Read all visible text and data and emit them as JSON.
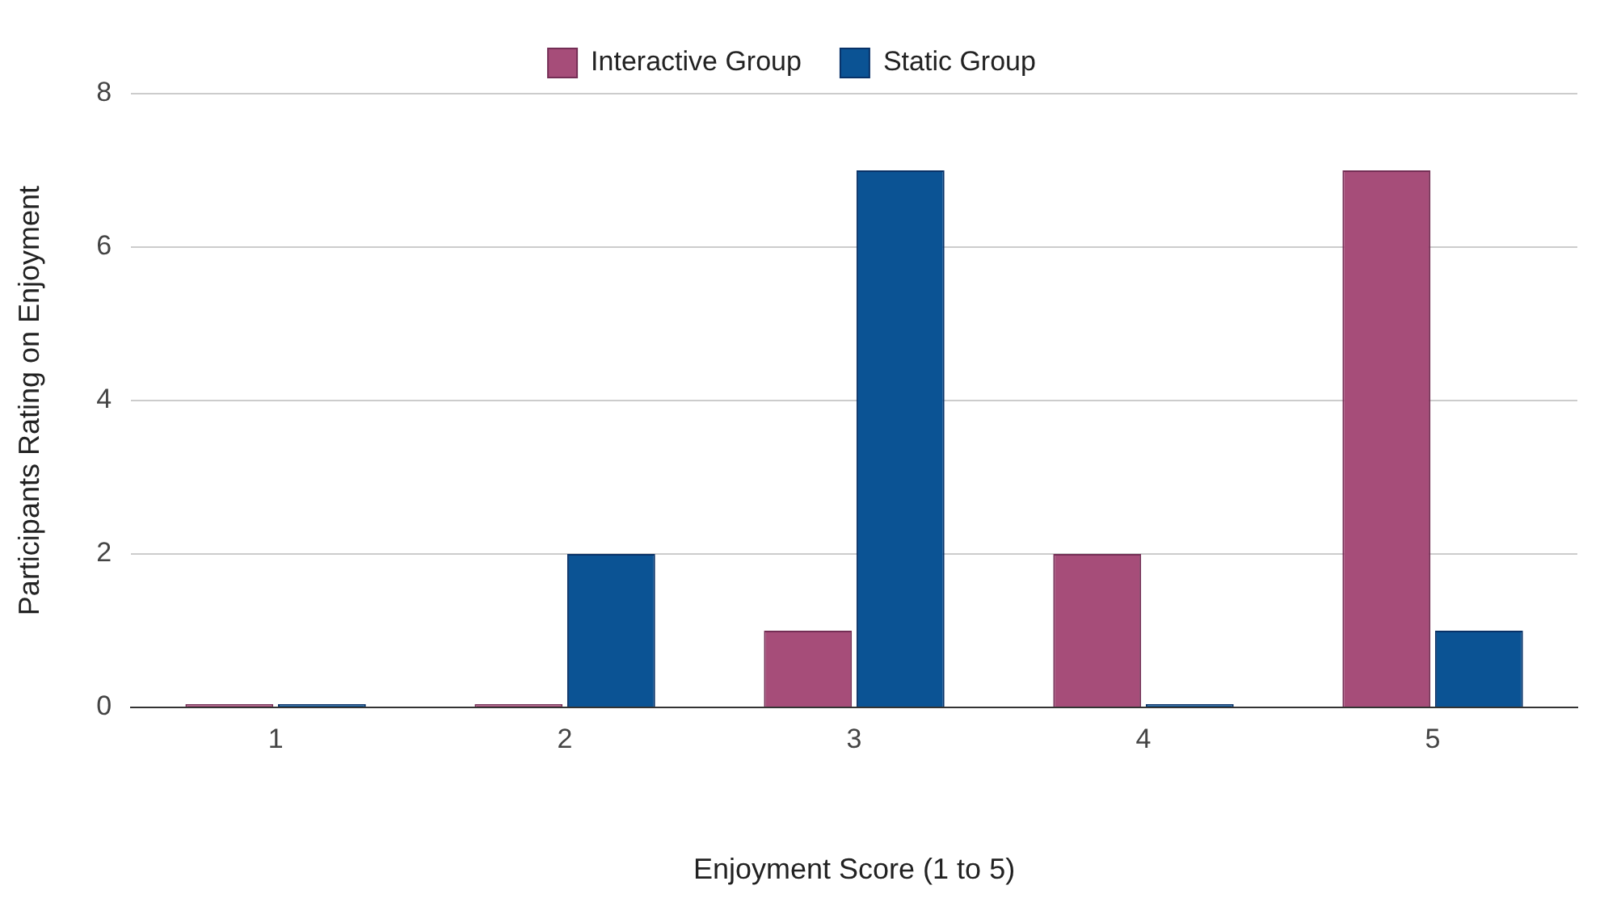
{
  "chart_data": {
    "type": "bar",
    "xlabel": "Enjoyment Score (1 to 5)",
    "ylabel": "Participants Rating on Enjoyment",
    "categories": [
      "1",
      "2",
      "3",
      "4",
      "5"
    ],
    "series": [
      {
        "name": "Interactive Group",
        "color": "#a64d79",
        "values": [
          0,
          0,
          1,
          2,
          7
        ]
      },
      {
        "name": "Static Group",
        "color": "#0b5394",
        "values": [
          0,
          2,
          7,
          0,
          1
        ]
      }
    ],
    "ylim": [
      0,
      8
    ],
    "yticks": [
      0,
      2,
      4,
      6,
      8
    ],
    "grid": "y",
    "legend": "top"
  }
}
